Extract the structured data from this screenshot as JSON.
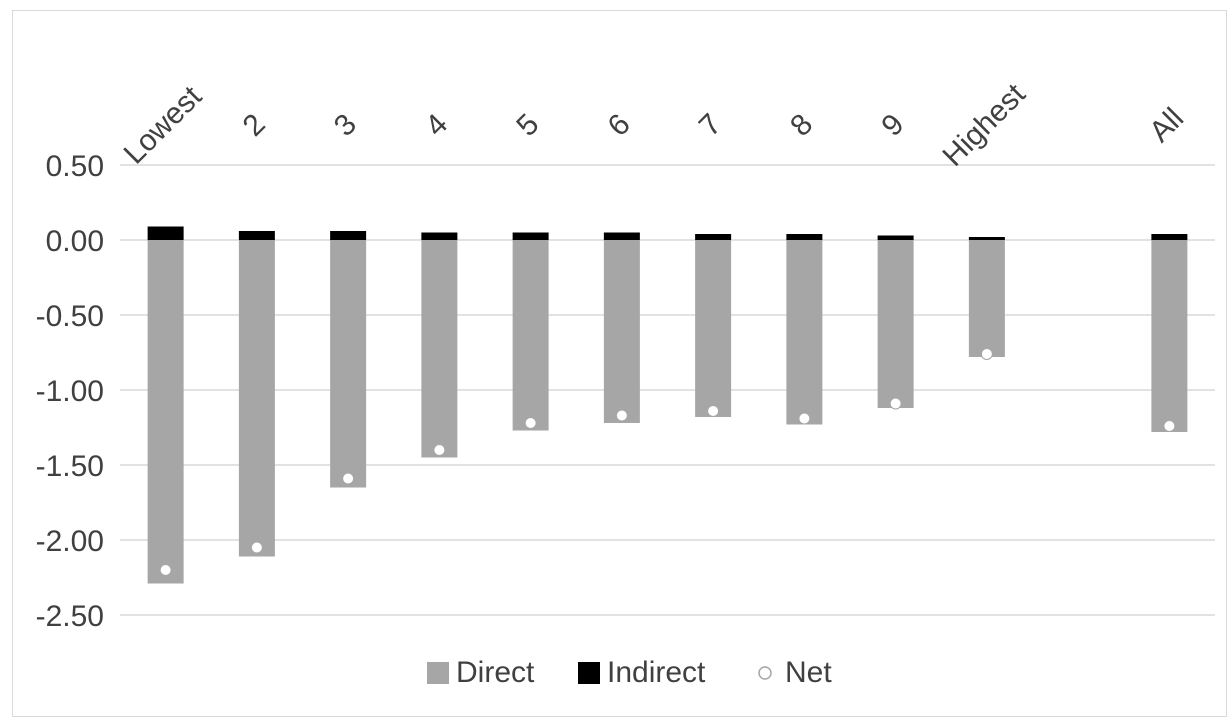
{
  "chart_data": {
    "type": "bar",
    "stacked": true,
    "categories": [
      "Lowest",
      "2",
      "3",
      "4",
      "5",
      "6",
      "7",
      "8",
      "9",
      "Highest",
      "All"
    ],
    "series": [
      {
        "name": "Direct",
        "kind": "bar",
        "color": "#a6a6a6",
        "values": [
          -2.29,
          -2.11,
          -1.65,
          -1.45,
          -1.27,
          -1.22,
          -1.18,
          -1.23,
          -1.12,
          -0.78,
          -1.28
        ]
      },
      {
        "name": "Indirect",
        "kind": "bar",
        "color": "#000000",
        "values": [
          0.09,
          0.06,
          0.06,
          0.05,
          0.05,
          0.05,
          0.04,
          0.04,
          0.03,
          0.02,
          0.04
        ]
      },
      {
        "name": "Net",
        "kind": "marker",
        "color": "#ffffff",
        "values": [
          -2.2,
          -2.05,
          -1.59,
          -1.4,
          -1.22,
          -1.17,
          -1.14,
          -1.19,
          -1.09,
          -0.76,
          -1.24
        ]
      }
    ],
    "gap_after_category": "Highest",
    "ylim": [
      -2.5,
      0.5
    ],
    "yticks": [
      "0.50",
      "0.00",
      "-0.50",
      "-1.00",
      "-1.50",
      "-2.00",
      "-2.50"
    ],
    "grid": true,
    "legend": "bottom",
    "category_labels_position": "top-rotated"
  }
}
